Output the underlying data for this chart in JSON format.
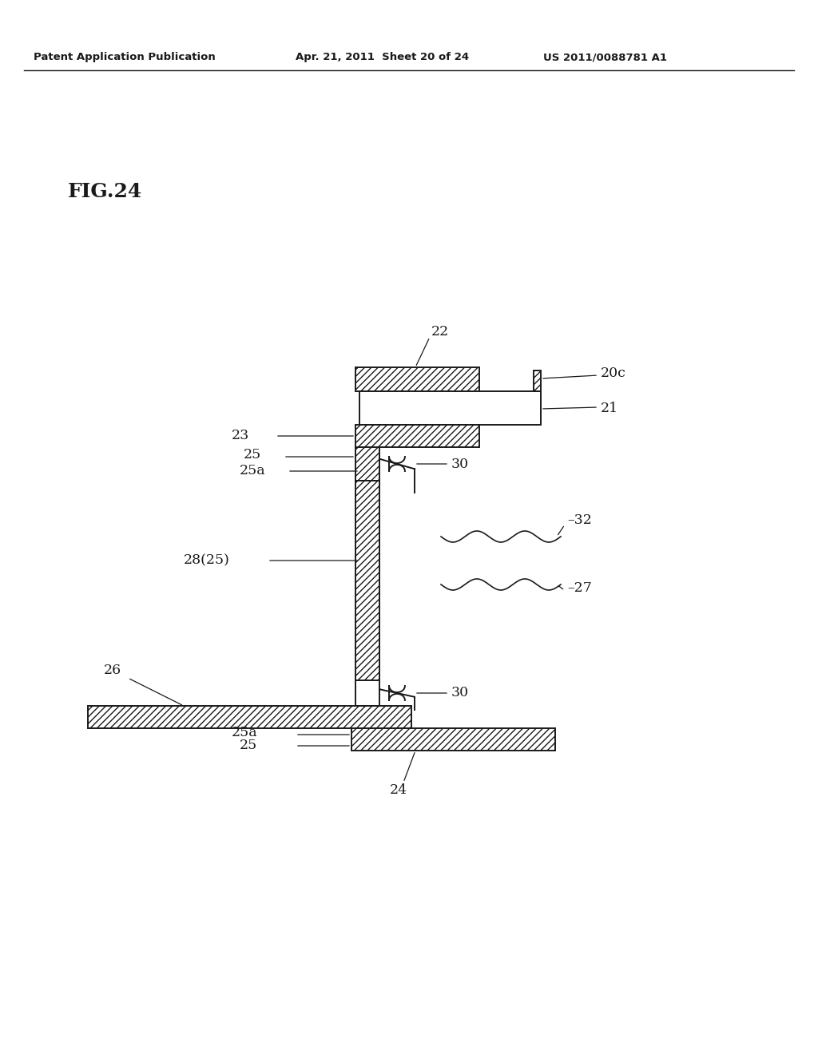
{
  "background_color": "#ffffff",
  "header_left": "Patent Application Publication",
  "header_mid": "Apr. 21, 2011  Sheet 20 of 24",
  "header_right": "US 2011/0088781 A1",
  "fig_label": "FIG.24"
}
